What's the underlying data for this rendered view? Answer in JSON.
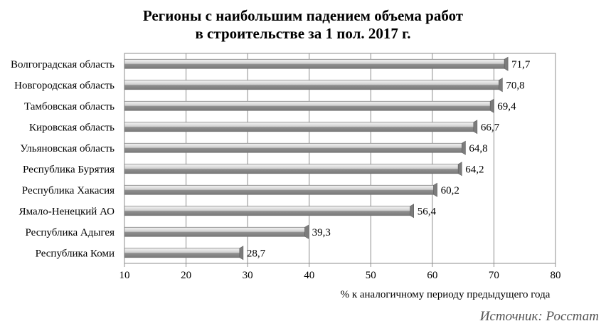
{
  "title_line1": "Регионы с наибольшим падением объема работ",
  "title_line2": "в строительстве за 1 пол. 2017 г.",
  "source": "Источник: Росстат",
  "chart_data": {
    "type": "bar",
    "orientation": "horizontal",
    "categories": [
      "Волгоградская область",
      "Новгородская область",
      "Тамбовская область",
      "Кировская область",
      "Ульяновская область",
      "Республика Бурятия",
      "Республика Хакасия",
      "Ямало-Ненецкий АО",
      "Республика Адыгея",
      "Республика Коми"
    ],
    "values": [
      71.7,
      70.8,
      69.4,
      66.7,
      64.8,
      64.2,
      60.2,
      56.4,
      39.3,
      28.7
    ],
    "value_labels": [
      "71,7",
      "70,8",
      "69,4",
      "66,7",
      "64,8",
      "64,2",
      "60,2",
      "56,4",
      "39,3",
      "28,7"
    ],
    "xlabel": "% к аналогичному периоду предыдущего года",
    "xlim": [
      10,
      80
    ],
    "xticks": [
      10,
      20,
      30,
      40,
      50,
      60,
      70,
      80
    ],
    "grid": "vertical",
    "bar_color": "#9a9a9a",
    "bar_highlight": "#e2e2e2"
  }
}
